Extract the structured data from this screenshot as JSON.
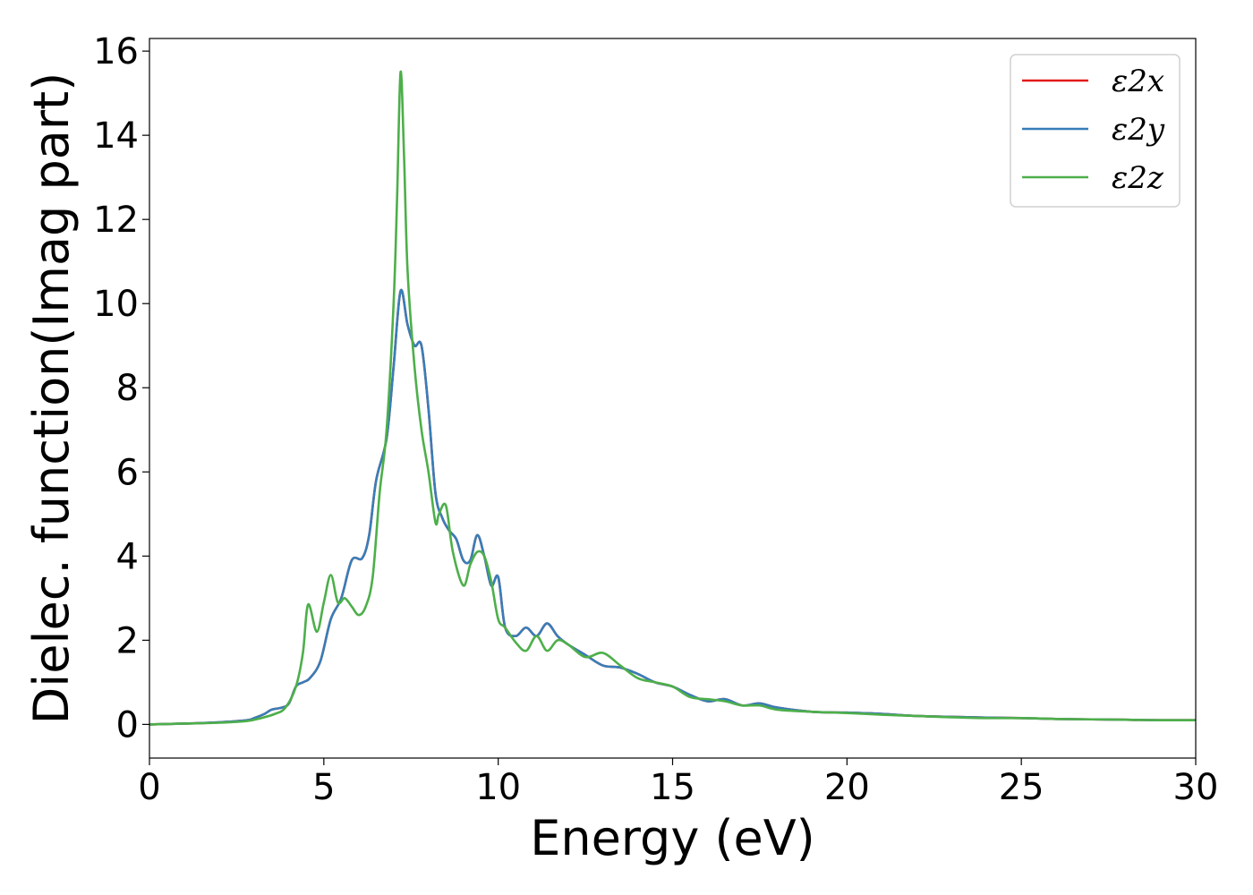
{
  "chart_data": {
    "type": "line",
    "xlabel": "Energy (eV)",
    "ylabel": "Dielec. function(Imag part)",
    "xlim": [
      0,
      30
    ],
    "ylim": [
      -0.8,
      16.3
    ],
    "xticks": [
      0,
      5,
      10,
      15,
      20,
      25,
      30
    ],
    "yticks": [
      0,
      2,
      4,
      6,
      8,
      10,
      12,
      14,
      16
    ],
    "grid": false,
    "legend_position": "top-right",
    "series": [
      {
        "name": "ε2x",
        "color": "#e41a1c",
        "x": [
          0,
          1,
          2,
          2.8,
          3.0,
          3.3,
          3.5,
          3.8,
          4.0,
          4.2,
          4.4,
          4.6,
          4.9,
          5.2,
          5.5,
          5.8,
          6.1,
          6.3,
          6.5,
          6.8,
          7.0,
          7.2,
          7.4,
          7.6,
          7.8,
          8.0,
          8.2,
          8.4,
          8.6,
          8.8,
          9.0,
          9.2,
          9.4,
          9.6,
          9.8,
          10.0,
          10.2,
          10.5,
          10.8,
          11.1,
          11.4,
          11.7,
          12.0,
          12.5,
          13.0,
          13.5,
          14.0,
          14.5,
          15.0,
          15.5,
          16.0,
          16.5,
          17.0,
          17.5,
          18.0,
          19.0,
          20.0,
          21.0,
          22.0,
          23.0,
          24.0,
          25.0,
          26.0,
          27.0,
          28.0,
          29.0,
          30.0
        ],
        "y": [
          0.0,
          0.02,
          0.05,
          0.1,
          0.15,
          0.25,
          0.35,
          0.4,
          0.5,
          0.9,
          1.0,
          1.1,
          1.5,
          2.5,
          3.0,
          3.9,
          3.95,
          4.5,
          5.8,
          6.8,
          8.5,
          10.3,
          9.5,
          9.0,
          9.0,
          7.5,
          5.5,
          4.9,
          4.6,
          4.4,
          3.9,
          3.9,
          4.5,
          4.0,
          3.3,
          3.5,
          2.3,
          2.1,
          2.3,
          2.1,
          2.4,
          2.1,
          1.9,
          1.65,
          1.4,
          1.35,
          1.2,
          1.0,
          0.9,
          0.7,
          0.55,
          0.6,
          0.45,
          0.5,
          0.4,
          0.3,
          0.28,
          0.25,
          0.2,
          0.18,
          0.16,
          0.15,
          0.13,
          0.12,
          0.11,
          0.1,
          0.1
        ]
      },
      {
        "name": "ε2y",
        "color": "#377eb8",
        "x": [
          0,
          1,
          2,
          2.8,
          3.0,
          3.3,
          3.5,
          3.8,
          4.0,
          4.2,
          4.4,
          4.6,
          4.9,
          5.2,
          5.5,
          5.8,
          6.1,
          6.3,
          6.5,
          6.8,
          7.0,
          7.2,
          7.4,
          7.6,
          7.8,
          8.0,
          8.2,
          8.4,
          8.6,
          8.8,
          9.0,
          9.2,
          9.4,
          9.6,
          9.8,
          10.0,
          10.2,
          10.5,
          10.8,
          11.1,
          11.4,
          11.7,
          12.0,
          12.5,
          13.0,
          13.5,
          14.0,
          14.5,
          15.0,
          15.5,
          16.0,
          16.5,
          17.0,
          17.5,
          18.0,
          19.0,
          20.0,
          21.0,
          22.0,
          23.0,
          24.0,
          25.0,
          26.0,
          27.0,
          28.0,
          29.0,
          30.0
        ],
        "y": [
          0.0,
          0.02,
          0.05,
          0.1,
          0.15,
          0.25,
          0.35,
          0.4,
          0.5,
          0.9,
          1.0,
          1.1,
          1.5,
          2.5,
          3.0,
          3.9,
          3.95,
          4.5,
          5.8,
          6.8,
          8.5,
          10.3,
          9.5,
          9.0,
          9.0,
          7.5,
          5.5,
          4.9,
          4.6,
          4.4,
          3.9,
          3.9,
          4.5,
          4.0,
          3.3,
          3.5,
          2.3,
          2.1,
          2.3,
          2.1,
          2.4,
          2.1,
          1.9,
          1.65,
          1.4,
          1.35,
          1.2,
          1.0,
          0.9,
          0.7,
          0.55,
          0.6,
          0.45,
          0.5,
          0.4,
          0.3,
          0.28,
          0.25,
          0.2,
          0.18,
          0.16,
          0.15,
          0.13,
          0.12,
          0.11,
          0.1,
          0.1
        ]
      },
      {
        "name": "ε2z",
        "color": "#4daf4a",
        "x": [
          0,
          1,
          2,
          2.8,
          3.2,
          3.6,
          3.9,
          4.2,
          4.4,
          4.55,
          4.8,
          5.0,
          5.2,
          5.4,
          5.6,
          5.8,
          6.0,
          6.2,
          6.4,
          6.6,
          6.8,
          7.0,
          7.1,
          7.2,
          7.3,
          7.4,
          7.6,
          7.8,
          8.0,
          8.2,
          8.3,
          8.5,
          8.7,
          9.0,
          9.2,
          9.4,
          9.6,
          9.8,
          10.0,
          10.2,
          10.5,
          10.8,
          11.1,
          11.4,
          11.7,
          12.0,
          12.5,
          13.0,
          13.5,
          14.0,
          14.5,
          15.0,
          15.5,
          16.0,
          16.5,
          17.0,
          17.5,
          18.0,
          19.0,
          20.0,
          21.0,
          22.0,
          23.0,
          24.0,
          25.0,
          26.0,
          27.0,
          28.0,
          29.0,
          30.0
        ],
        "y": [
          0.0,
          0.02,
          0.04,
          0.08,
          0.15,
          0.25,
          0.4,
          0.9,
          1.7,
          2.85,
          2.2,
          2.9,
          3.55,
          2.9,
          3.0,
          2.8,
          2.6,
          2.8,
          3.5,
          5.5,
          7.0,
          10.0,
          12.5,
          15.5,
          13.5,
          10.8,
          8.5,
          7.0,
          6.0,
          4.8,
          5.0,
          5.2,
          4.1,
          3.3,
          3.8,
          4.1,
          4.0,
          3.4,
          2.5,
          2.3,
          1.95,
          1.75,
          2.1,
          1.75,
          2.0,
          1.9,
          1.6,
          1.7,
          1.4,
          1.1,
          1.0,
          0.9,
          0.65,
          0.6,
          0.55,
          0.45,
          0.45,
          0.35,
          0.3,
          0.27,
          0.23,
          0.2,
          0.17,
          0.15,
          0.15,
          0.13,
          0.12,
          0.11,
          0.1,
          0.1
        ]
      }
    ]
  }
}
